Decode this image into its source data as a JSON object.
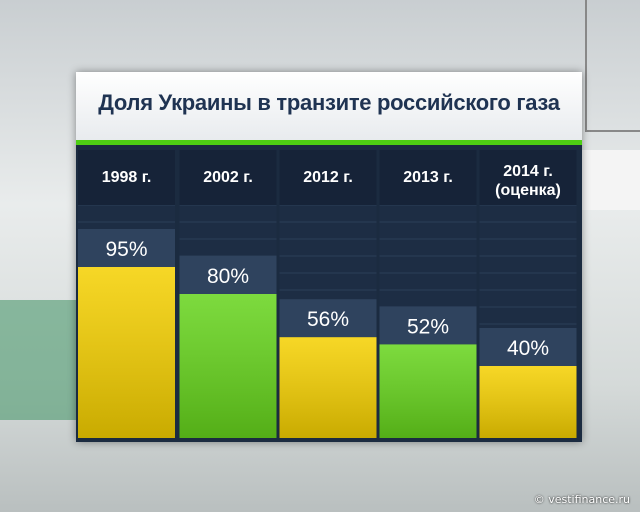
{
  "chart_data": {
    "type": "bar",
    "title": "Доля Украины в транзите российского газа",
    "categories": [
      "1998 г.",
      "2002 г.",
      "2012 г.",
      "2013 г.",
      "2014 г.\n(оценка)"
    ],
    "values": [
      95,
      80,
      56,
      52,
      40
    ],
    "value_labels": [
      "95%",
      "80%",
      "56%",
      "52%",
      "40%"
    ],
    "colors": [
      "#f5d000",
      "#66d41c",
      "#f5d000",
      "#66d41c",
      "#f5d000"
    ],
    "source": "© vestifinance.ru"
  }
}
